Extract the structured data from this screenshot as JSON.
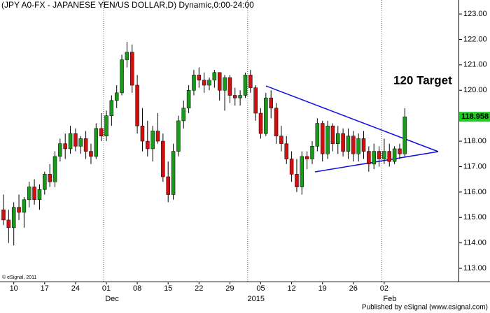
{
  "chart_data": {
    "type": "candlestick",
    "title": "(JPY A0-FX - JAPANESE YEN/US DOLLAR,D) Dynamic,0:00-24:00",
    "categories": [
      null,
      null,
      "10",
      null,
      null,
      null,
      null,
      null,
      "17",
      null,
      null,
      null,
      null,
      null,
      "24",
      null,
      null,
      null,
      null,
      null,
      "01",
      null,
      null,
      null,
      null,
      null,
      "08",
      null,
      null,
      null,
      null,
      null,
      "15",
      null,
      null,
      null,
      null,
      null,
      "22",
      null,
      null,
      null,
      null,
      null,
      "29",
      null,
      null,
      null,
      null,
      null,
      "05",
      null,
      null,
      null,
      null,
      null,
      "12",
      null,
      null,
      null,
      null,
      null,
      "19",
      null,
      null,
      null,
      null,
      null,
      "26",
      null,
      null,
      null,
      null,
      null,
      "02",
      null,
      null,
      null,
      null
    ],
    "month_labels": [
      null,
      null,
      null,
      null,
      null,
      null,
      null,
      null,
      null,
      null,
      null,
      null,
      null,
      null,
      null,
      null,
      null,
      null,
      null,
      null,
      "Dec",
      null,
      null,
      null,
      null,
      null,
      null,
      null,
      null,
      null,
      null,
      null,
      null,
      null,
      null,
      null,
      null,
      null,
      null,
      null,
      null,
      null,
      null,
      null,
      null,
      null,
      null,
      null,
      "2015",
      null,
      null,
      null,
      null,
      null,
      null,
      null,
      null,
      null,
      null,
      null,
      null,
      null,
      null,
      null,
      null,
      null,
      null,
      null,
      null,
      null,
      null,
      null,
      null,
      null,
      "Feb",
      null,
      null,
      null,
      null
    ],
    "open": [
      115.3,
      114.9,
      114.6,
      115.4,
      115.2,
      115.7,
      116.2,
      115.7,
      116.1,
      116.7,
      116.4,
      117.4,
      117.9,
      117.7,
      118.3,
      117.8,
      118.1,
      117.6,
      117.4,
      118.5,
      118.2,
      119.0,
      119.6,
      119.9,
      121.2,
      121.5,
      120.2,
      118.6,
      118.0,
      117.7,
      118.4,
      118.0,
      116.6,
      115.9,
      117.6,
      118.8,
      119.3,
      120.0,
      120.6,
      120.4,
      120.2,
      120.4,
      120.7,
      120.0,
      120.5,
      119.8,
      119.7,
      119.8,
      120.6,
      120.1,
      119.1,
      118.3,
      119.7,
      119.3,
      118.2,
      117.9,
      117.3,
      116.7,
      116.2,
      117.4,
      117.3,
      117.8,
      118.7,
      117.5,
      118.6,
      117.9,
      118.3,
      117.6,
      118.2,
      117.5,
      118.1,
      117.6,
      117.1,
      117.6,
      117.3,
      117.6,
      117.2,
      117.7,
      117.5
    ],
    "high": [
      115.9,
      115.3,
      115.6,
      115.9,
      115.8,
      116.4,
      116.5,
      116.3,
      116.8,
      117.1,
      117.6,
      118.1,
      118.3,
      118.6,
      118.5,
      118.2,
      118.4,
      117.9,
      118.7,
      119.1,
      119.2,
      119.8,
      120.2,
      121.4,
      121.9,
      121.8,
      120.6,
      119.3,
      118.8,
      118.6,
      119.1,
      118.3,
      117.2,
      117.9,
      119.0,
      119.6,
      120.2,
      120.8,
      120.9,
      120.7,
      120.5,
      120.8,
      120.7,
      120.6,
      120.6,
      120.1,
      120.0,
      120.7,
      120.8,
      120.2,
      119.3,
      119.9,
      120.0,
      119.5,
      118.6,
      118.2,
      117.6,
      117.3,
      117.6,
      117.6,
      118.0,
      118.9,
      118.8,
      118.8,
      118.7,
      118.6,
      118.5,
      118.5,
      118.4,
      118.3,
      118.4,
      117.8,
      117.9,
      117.8,
      118.1,
      117.9,
      117.8,
      117.9,
      119.3
    ],
    "low": [
      114.7,
      114.0,
      113.9,
      114.9,
      114.6,
      115.4,
      115.5,
      115.3,
      115.9,
      116.2,
      116.2,
      117.2,
      117.3,
      117.5,
      117.6,
      117.5,
      117.3,
      117.1,
      117.3,
      118.0,
      118.0,
      118.6,
      119.3,
      119.8,
      120.9,
      119.9,
      118.3,
      117.6,
      117.4,
      117.2,
      117.9,
      116.4,
      115.6,
      115.7,
      117.4,
      118.5,
      119.1,
      119.8,
      120.1,
      119.9,
      120.0,
      120.1,
      119.6,
      119.2,
      119.5,
      119.4,
      119.4,
      119.7,
      119.9,
      118.8,
      118.1,
      118.2,
      118.9,
      117.9,
      117.6,
      117.1,
      116.4,
      116.0,
      115.9,
      116.9,
      117.1,
      117.6,
      117.2,
      117.3,
      117.6,
      117.5,
      117.4,
      117.3,
      117.2,
      117.2,
      117.3,
      116.8,
      116.9,
      117.0,
      117.1,
      117.0,
      117.1,
      117.3,
      117.4
    ],
    "close": [
      114.9,
      114.6,
      115.4,
      115.2,
      115.7,
      116.2,
      115.7,
      116.1,
      116.7,
      116.4,
      117.4,
      117.9,
      117.7,
      118.3,
      117.8,
      118.1,
      117.6,
      117.4,
      118.5,
      118.2,
      119.0,
      119.6,
      119.9,
      121.2,
      121.5,
      120.2,
      118.6,
      118.0,
      117.7,
      118.4,
      118.0,
      116.6,
      115.9,
      117.6,
      118.8,
      119.3,
      120.0,
      120.6,
      120.4,
      120.2,
      120.4,
      120.7,
      120.0,
      120.5,
      119.8,
      119.7,
      119.8,
      120.6,
      120.1,
      119.1,
      118.3,
      119.7,
      119.3,
      118.2,
      117.9,
      117.3,
      116.7,
      116.2,
      117.4,
      117.3,
      117.8,
      118.7,
      117.5,
      118.6,
      117.9,
      118.3,
      117.6,
      118.2,
      117.5,
      118.1,
      117.6,
      117.1,
      117.6,
      117.3,
      117.6,
      117.2,
      117.7,
      117.5,
      118.958
    ],
    "up_color": "#1a9a1a",
    "down_color": "#d01010",
    "ylim": [
      112.48,
      123.55
    ],
    "yticks": [
      {
        "value": 113,
        "label": "113.00"
      },
      {
        "value": 114,
        "label": "114.00"
      },
      {
        "value": 115,
        "label": "115.00"
      },
      {
        "value": 116,
        "label": "116.00"
      },
      {
        "value": 117,
        "label": "117.00"
      },
      {
        "value": 118,
        "label": "118.00"
      },
      {
        "value": 119,
        "label": "119.00"
      },
      {
        "value": 120,
        "label": "120.00"
      },
      {
        "value": 121,
        "label": "121.00"
      },
      {
        "value": 122,
        "label": "122.00"
      },
      {
        "value": 123,
        "label": "123.00"
      }
    ],
    "annotation": "120 Target",
    "copyright": "© eSignal, 2011",
    "publisher": "Published by eSignal (www.esignal.com)"
  }
}
